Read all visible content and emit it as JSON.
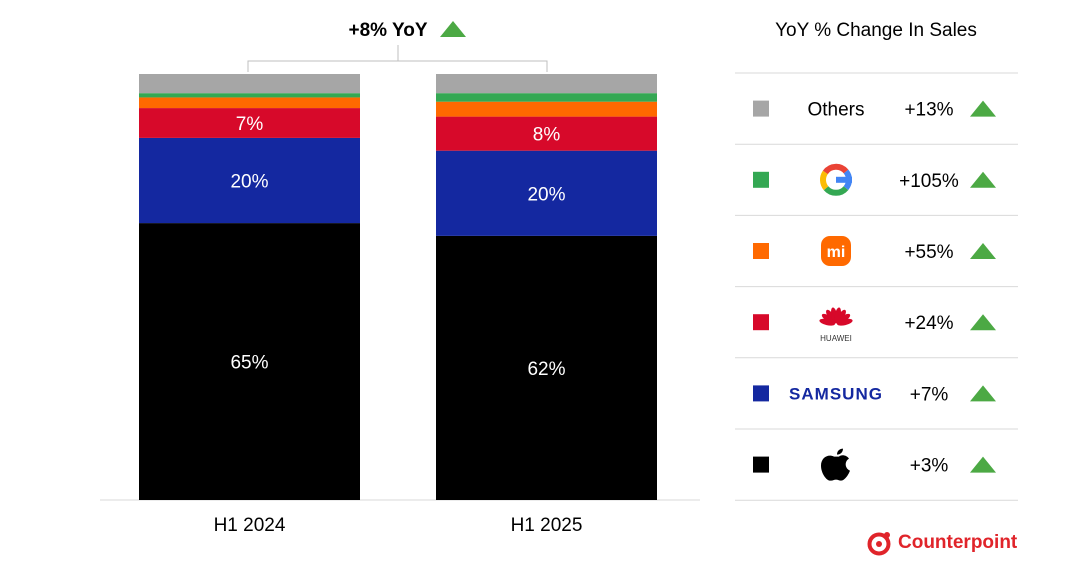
{
  "chart_data": {
    "type": "bar",
    "stacked": true,
    "categories": [
      "H1 2024",
      "H1 2025"
    ],
    "ylim": [
      0,
      100
    ],
    "grid": false,
    "series": [
      {
        "name": "Apple",
        "color": "#000000",
        "values": [
          65,
          62
        ],
        "labels": [
          "65%",
          "62%"
        ]
      },
      {
        "name": "Samsung",
        "color": "#1428A0",
        "values": [
          20,
          20
        ],
        "labels": [
          "20%",
          "20%"
        ]
      },
      {
        "name": "Huawei",
        "color": "#D7092A",
        "values": [
          7,
          8
        ],
        "labels": [
          "7%",
          "8%"
        ]
      },
      {
        "name": "Xiaomi",
        "color": "#FF6900",
        "values": [
          2.5,
          3.5
        ],
        "labels": [
          "",
          ""
        ]
      },
      {
        "name": "Google",
        "color": "#34A853",
        "values": [
          1,
          2
        ],
        "labels": [
          "",
          ""
        ]
      },
      {
        "name": "Others",
        "color": "#A6A6A6",
        "values": [
          4.5,
          4.5
        ],
        "labels": [
          "",
          ""
        ]
      }
    ],
    "annotation": {
      "text": "+8% YoY",
      "icon": "triangle-up-icon",
      "color": "#4CA944"
    },
    "legend": {
      "title": "YoY % Change In Sales",
      "placement": "right",
      "rows": [
        {
          "brand": "Others",
          "label": "Others",
          "change": "+13%",
          "color": "#A6A6A6",
          "icon": "text"
        },
        {
          "brand": "Google",
          "label": "G",
          "change": "+105%",
          "color": "#34A853",
          "icon": "google-logo-icon"
        },
        {
          "brand": "Xiaomi",
          "label": "mi",
          "change": "+55%",
          "color": "#FF6900",
          "icon": "xiaomi-logo-icon"
        },
        {
          "brand": "Huawei",
          "label": "HUAWEI",
          "change": "+24%",
          "color": "#D7092A",
          "icon": "huawei-logo-icon"
        },
        {
          "brand": "Samsung",
          "label": "SAMSUNG",
          "change": "+7%",
          "color": "#1428A0",
          "icon": "samsung-logo-icon"
        },
        {
          "brand": "Apple",
          "label": "",
          "change": "+3%",
          "color": "#000000",
          "icon": "apple-logo-icon"
        }
      ]
    }
  },
  "branding": {
    "logo": "Counterpoint"
  }
}
